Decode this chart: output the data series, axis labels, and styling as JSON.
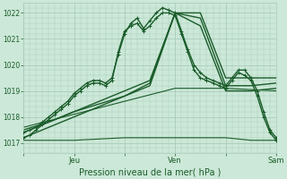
{
  "bg_color": "#cce8d8",
  "grid_color": "#aaccbb",
  "line_color": "#1a5c2a",
  "xlabel": "Pression niveau de la mer( hPa )",
  "ylim": [
    1016.6,
    1022.4
  ],
  "yticks": [
    1017,
    1018,
    1019,
    1020,
    1021,
    1022
  ],
  "xtick_labels": [
    "",
    "Jeu",
    "",
    "Ven",
    "",
    "Sam"
  ],
  "xtick_positions": [
    0,
    24,
    48,
    72,
    96,
    120
  ],
  "total_hours": 120,
  "series": [
    {
      "x": [
        0,
        3,
        6,
        9,
        12,
        15,
        18,
        21,
        24,
        27,
        30,
        33,
        36,
        39,
        42,
        45,
        48,
        51,
        54,
        57,
        60,
        63,
        66,
        69,
        72,
        75,
        78,
        81,
        84,
        87,
        90,
        93,
        96,
        99,
        102,
        105,
        108,
        111,
        114,
        117,
        120
      ],
      "y": [
        1017.2,
        1017.3,
        1017.5,
        1017.7,
        1017.9,
        1018.1,
        1018.3,
        1018.5,
        1018.8,
        1019.0,
        1019.2,
        1019.3,
        1019.3,
        1019.2,
        1019.4,
        1020.5,
        1021.3,
        1021.5,
        1021.6,
        1021.3,
        1021.5,
        1021.8,
        1022.0,
        1022.0,
        1021.9,
        1021.2,
        1020.5,
        1019.8,
        1019.5,
        1019.4,
        1019.3,
        1019.2,
        1019.1,
        1019.4,
        1019.7,
        1019.6,
        1019.4,
        1018.8,
        1018.0,
        1017.4,
        1017.1
      ],
      "marker": true,
      "linewidth": 1.0
    },
    {
      "x": [
        0,
        3,
        6,
        9,
        12,
        15,
        18,
        21,
        24,
        27,
        30,
        33,
        36,
        39,
        42,
        45,
        48,
        51,
        54,
        57,
        60,
        63,
        66,
        69,
        72,
        75,
        78,
        81,
        84,
        87,
        90,
        93,
        96,
        99,
        102,
        105,
        108,
        111,
        114,
        117,
        120
      ],
      "y": [
        1017.4,
        1017.5,
        1017.6,
        1017.8,
        1018.0,
        1018.2,
        1018.4,
        1018.6,
        1018.9,
        1019.1,
        1019.3,
        1019.4,
        1019.4,
        1019.3,
        1019.5,
        1020.4,
        1021.2,
        1021.6,
        1021.8,
        1021.4,
        1021.7,
        1022.0,
        1022.2,
        1022.1,
        1022.0,
        1021.3,
        1020.6,
        1020.0,
        1019.7,
        1019.5,
        1019.4,
        1019.3,
        1019.2,
        1019.5,
        1019.8,
        1019.8,
        1019.5,
        1019.0,
        1018.2,
        1017.5,
        1017.2
      ],
      "marker": true,
      "linewidth": 1.0
    },
    {
      "x": [
        0,
        12,
        24,
        36,
        48,
        60,
        72,
        84,
        96,
        108,
        120
      ],
      "y": [
        1017.2,
        1017.6,
        1018.0,
        1018.4,
        1018.8,
        1019.3,
        1022.0,
        1022.0,
        1019.5,
        1019.5,
        1019.5
      ],
      "marker": false,
      "linewidth": 1.0
    },
    {
      "x": [
        0,
        12,
        24,
        36,
        48,
        60,
        72,
        84,
        96,
        108,
        120
      ],
      "y": [
        1017.4,
        1017.8,
        1018.2,
        1018.6,
        1019.0,
        1019.4,
        1022.0,
        1021.8,
        1019.2,
        1019.2,
        1019.3
      ],
      "marker": false,
      "linewidth": 1.0
    },
    {
      "x": [
        0,
        12,
        24,
        36,
        48,
        60,
        72,
        84,
        96,
        108,
        120
      ],
      "y": [
        1017.5,
        1017.8,
        1018.2,
        1018.5,
        1018.8,
        1019.2,
        1022.0,
        1021.5,
        1019.0,
        1019.0,
        1019.1
      ],
      "marker": false,
      "linewidth": 1.0
    },
    {
      "x": [
        0,
        24,
        48,
        72,
        96,
        120
      ],
      "y": [
        1017.6,
        1018.1,
        1018.6,
        1019.1,
        1019.1,
        1019.0
      ],
      "marker": false,
      "linewidth": 0.8
    },
    {
      "x": [
        0,
        12,
        24,
        36,
        48,
        60,
        72,
        84,
        96,
        108,
        120
      ],
      "y": [
        1017.1,
        1017.1,
        1017.1,
        1017.15,
        1017.2,
        1017.2,
        1017.2,
        1017.2,
        1017.2,
        1017.1,
        1017.1
      ],
      "marker": false,
      "linewidth": 0.8
    }
  ]
}
